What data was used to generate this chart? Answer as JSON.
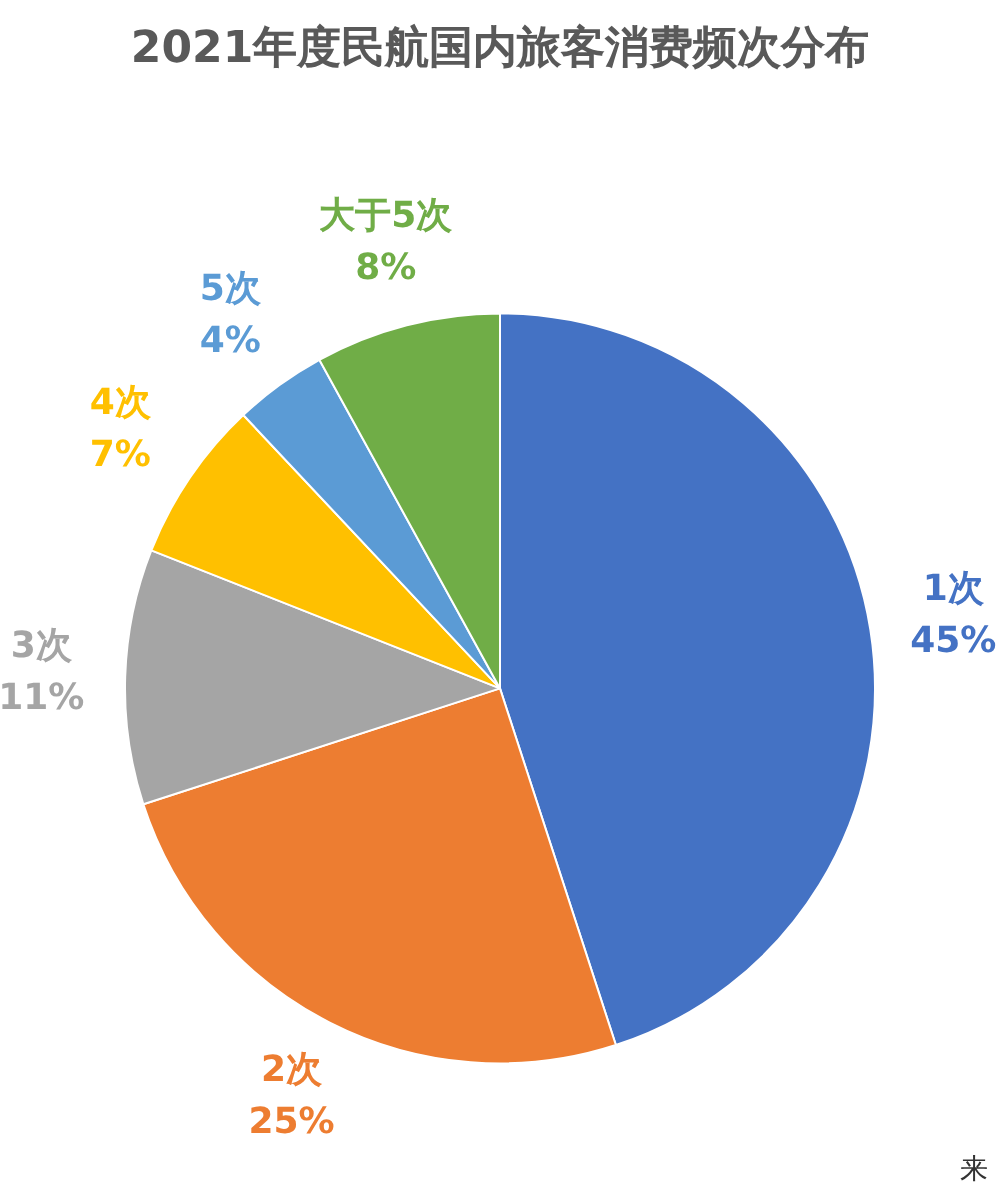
{
  "chart_data": {
    "type": "pie",
    "title": "2021年度民航国内旅客消费频次分布",
    "categories": [
      "1次",
      "2次",
      "3次",
      "4次",
      "5次",
      "大于5次"
    ],
    "values": [
      45,
      25,
      11,
      7,
      4,
      8
    ],
    "value_labels": [
      "45%",
      "25%",
      "11%",
      "7%",
      "4%",
      "8%"
    ],
    "colors": [
      "#4472c4",
      "#ed7d31",
      "#a5a5a5",
      "#ffc000",
      "#5b9bd5",
      "#70ad47"
    ],
    "legend": false,
    "annotations": [
      "来"
    ]
  }
}
